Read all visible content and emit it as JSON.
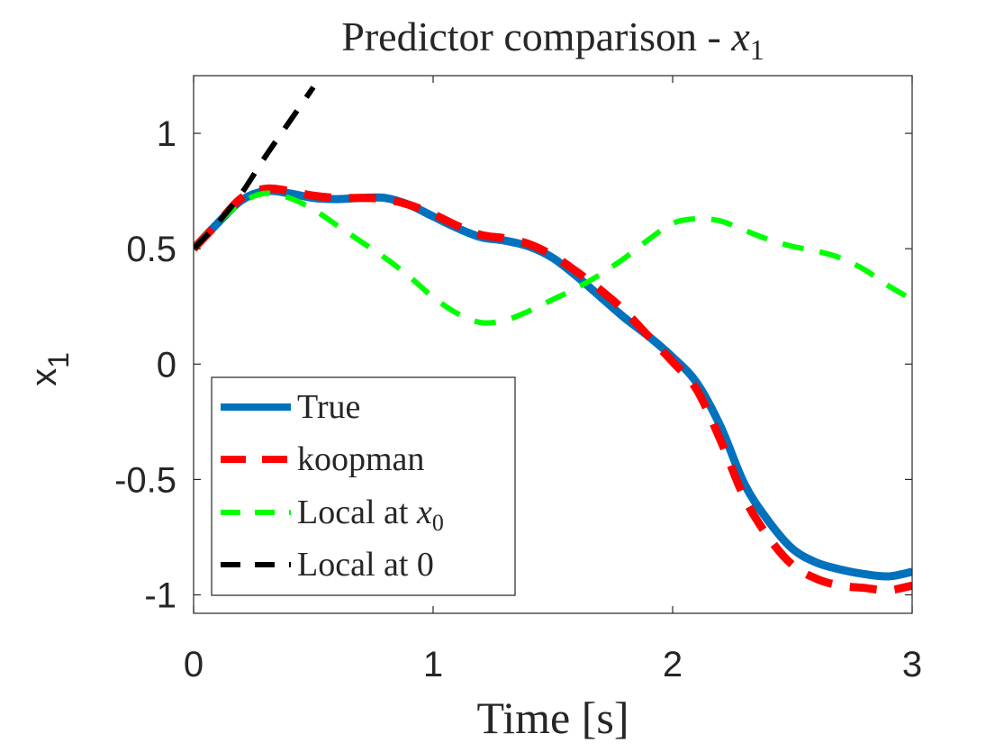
{
  "chart_data": {
    "type": "line",
    "title": {
      "prefix": "Predictor comparison - ",
      "var": "x",
      "sub": "1"
    },
    "xlabel": "Time [s]",
    "ylabel": {
      "base": "x",
      "sub": "1"
    },
    "xlim": [
      0,
      3
    ],
    "ylim": [
      -1.08,
      1.25
    ],
    "xticks": [
      0,
      1,
      2,
      3
    ],
    "xtick_labels": [
      "0",
      "1",
      "2",
      "3"
    ],
    "yticks": [
      1,
      0.5,
      0,
      -0.5,
      -1
    ],
    "ytick_labels": [
      "1",
      "0.5",
      "0",
      "-0.5",
      "-1"
    ],
    "grid": false,
    "legend_position": "bottom-left",
    "series": [
      {
        "name": "True",
        "label": "True",
        "color": "#0072BD",
        "style": "solid",
        "x": [
          0,
          0.1,
          0.2,
          0.3,
          0.4,
          0.5,
          0.6,
          0.7,
          0.8,
          0.9,
          1.0,
          1.1,
          1.2,
          1.3,
          1.4,
          1.5,
          1.6,
          1.7,
          1.8,
          1.9,
          2.0,
          2.1,
          2.2,
          2.3,
          2.4,
          2.5,
          2.6,
          2.7,
          2.8,
          2.9,
          3.0
        ],
        "y": [
          0.5,
          0.61,
          0.71,
          0.75,
          0.74,
          0.72,
          0.715,
          0.72,
          0.72,
          0.69,
          0.64,
          0.59,
          0.55,
          0.535,
          0.51,
          0.46,
          0.38,
          0.29,
          0.2,
          0.12,
          0.03,
          -0.08,
          -0.27,
          -0.52,
          -0.68,
          -0.8,
          -0.86,
          -0.89,
          -0.91,
          -0.92,
          -0.9
        ]
      },
      {
        "name": "koopman",
        "label": "koopman",
        "color": "#FF0000",
        "style": "dashed",
        "x": [
          0,
          0.1,
          0.2,
          0.3,
          0.4,
          0.5,
          0.6,
          0.7,
          0.8,
          0.9,
          1.0,
          1.1,
          1.2,
          1.3,
          1.4,
          1.5,
          1.6,
          1.7,
          1.8,
          1.9,
          2.0,
          2.1,
          2.2,
          2.3,
          2.4,
          2.5,
          2.6,
          2.7,
          2.8,
          2.9,
          3.0
        ],
        "y": [
          0.5,
          0.61,
          0.72,
          0.76,
          0.75,
          0.73,
          0.72,
          0.72,
          0.715,
          0.69,
          0.65,
          0.6,
          0.56,
          0.545,
          0.52,
          0.47,
          0.4,
          0.32,
          0.23,
          0.12,
          0.01,
          -0.11,
          -0.33,
          -0.58,
          -0.75,
          -0.87,
          -0.93,
          -0.96,
          -0.97,
          -0.98,
          -0.96
        ]
      },
      {
        "name": "Local at x0",
        "label": {
          "prefix": "Local at ",
          "var": "x",
          "sub": "0"
        },
        "color": "#00FF00",
        "style": "dashed",
        "x": [
          0,
          0.1,
          0.2,
          0.3,
          0.4,
          0.5,
          0.6,
          0.7,
          0.8,
          0.9,
          1.0,
          1.1,
          1.2,
          1.3,
          1.4,
          1.5,
          1.6,
          1.7,
          1.8,
          1.9,
          2.0,
          2.1,
          2.2,
          2.3,
          2.4,
          2.5,
          2.6,
          2.7,
          2.8,
          2.9,
          3.0
        ],
        "y": [
          0.5,
          0.61,
          0.7,
          0.74,
          0.72,
          0.67,
          0.6,
          0.53,
          0.46,
          0.38,
          0.29,
          0.22,
          0.18,
          0.19,
          0.23,
          0.28,
          0.33,
          0.39,
          0.46,
          0.54,
          0.61,
          0.63,
          0.62,
          0.58,
          0.54,
          0.51,
          0.49,
          0.46,
          0.41,
          0.34,
          0.28
        ]
      },
      {
        "name": "Local at 0",
        "label": "Local at 0",
        "color": "#000000",
        "style": "dashed",
        "x": [
          0,
          0.1,
          0.2,
          0.3,
          0.4,
          0.5
        ],
        "y": [
          0.5,
          0.61,
          0.74,
          0.9,
          1.05,
          1.2
        ]
      }
    ]
  }
}
